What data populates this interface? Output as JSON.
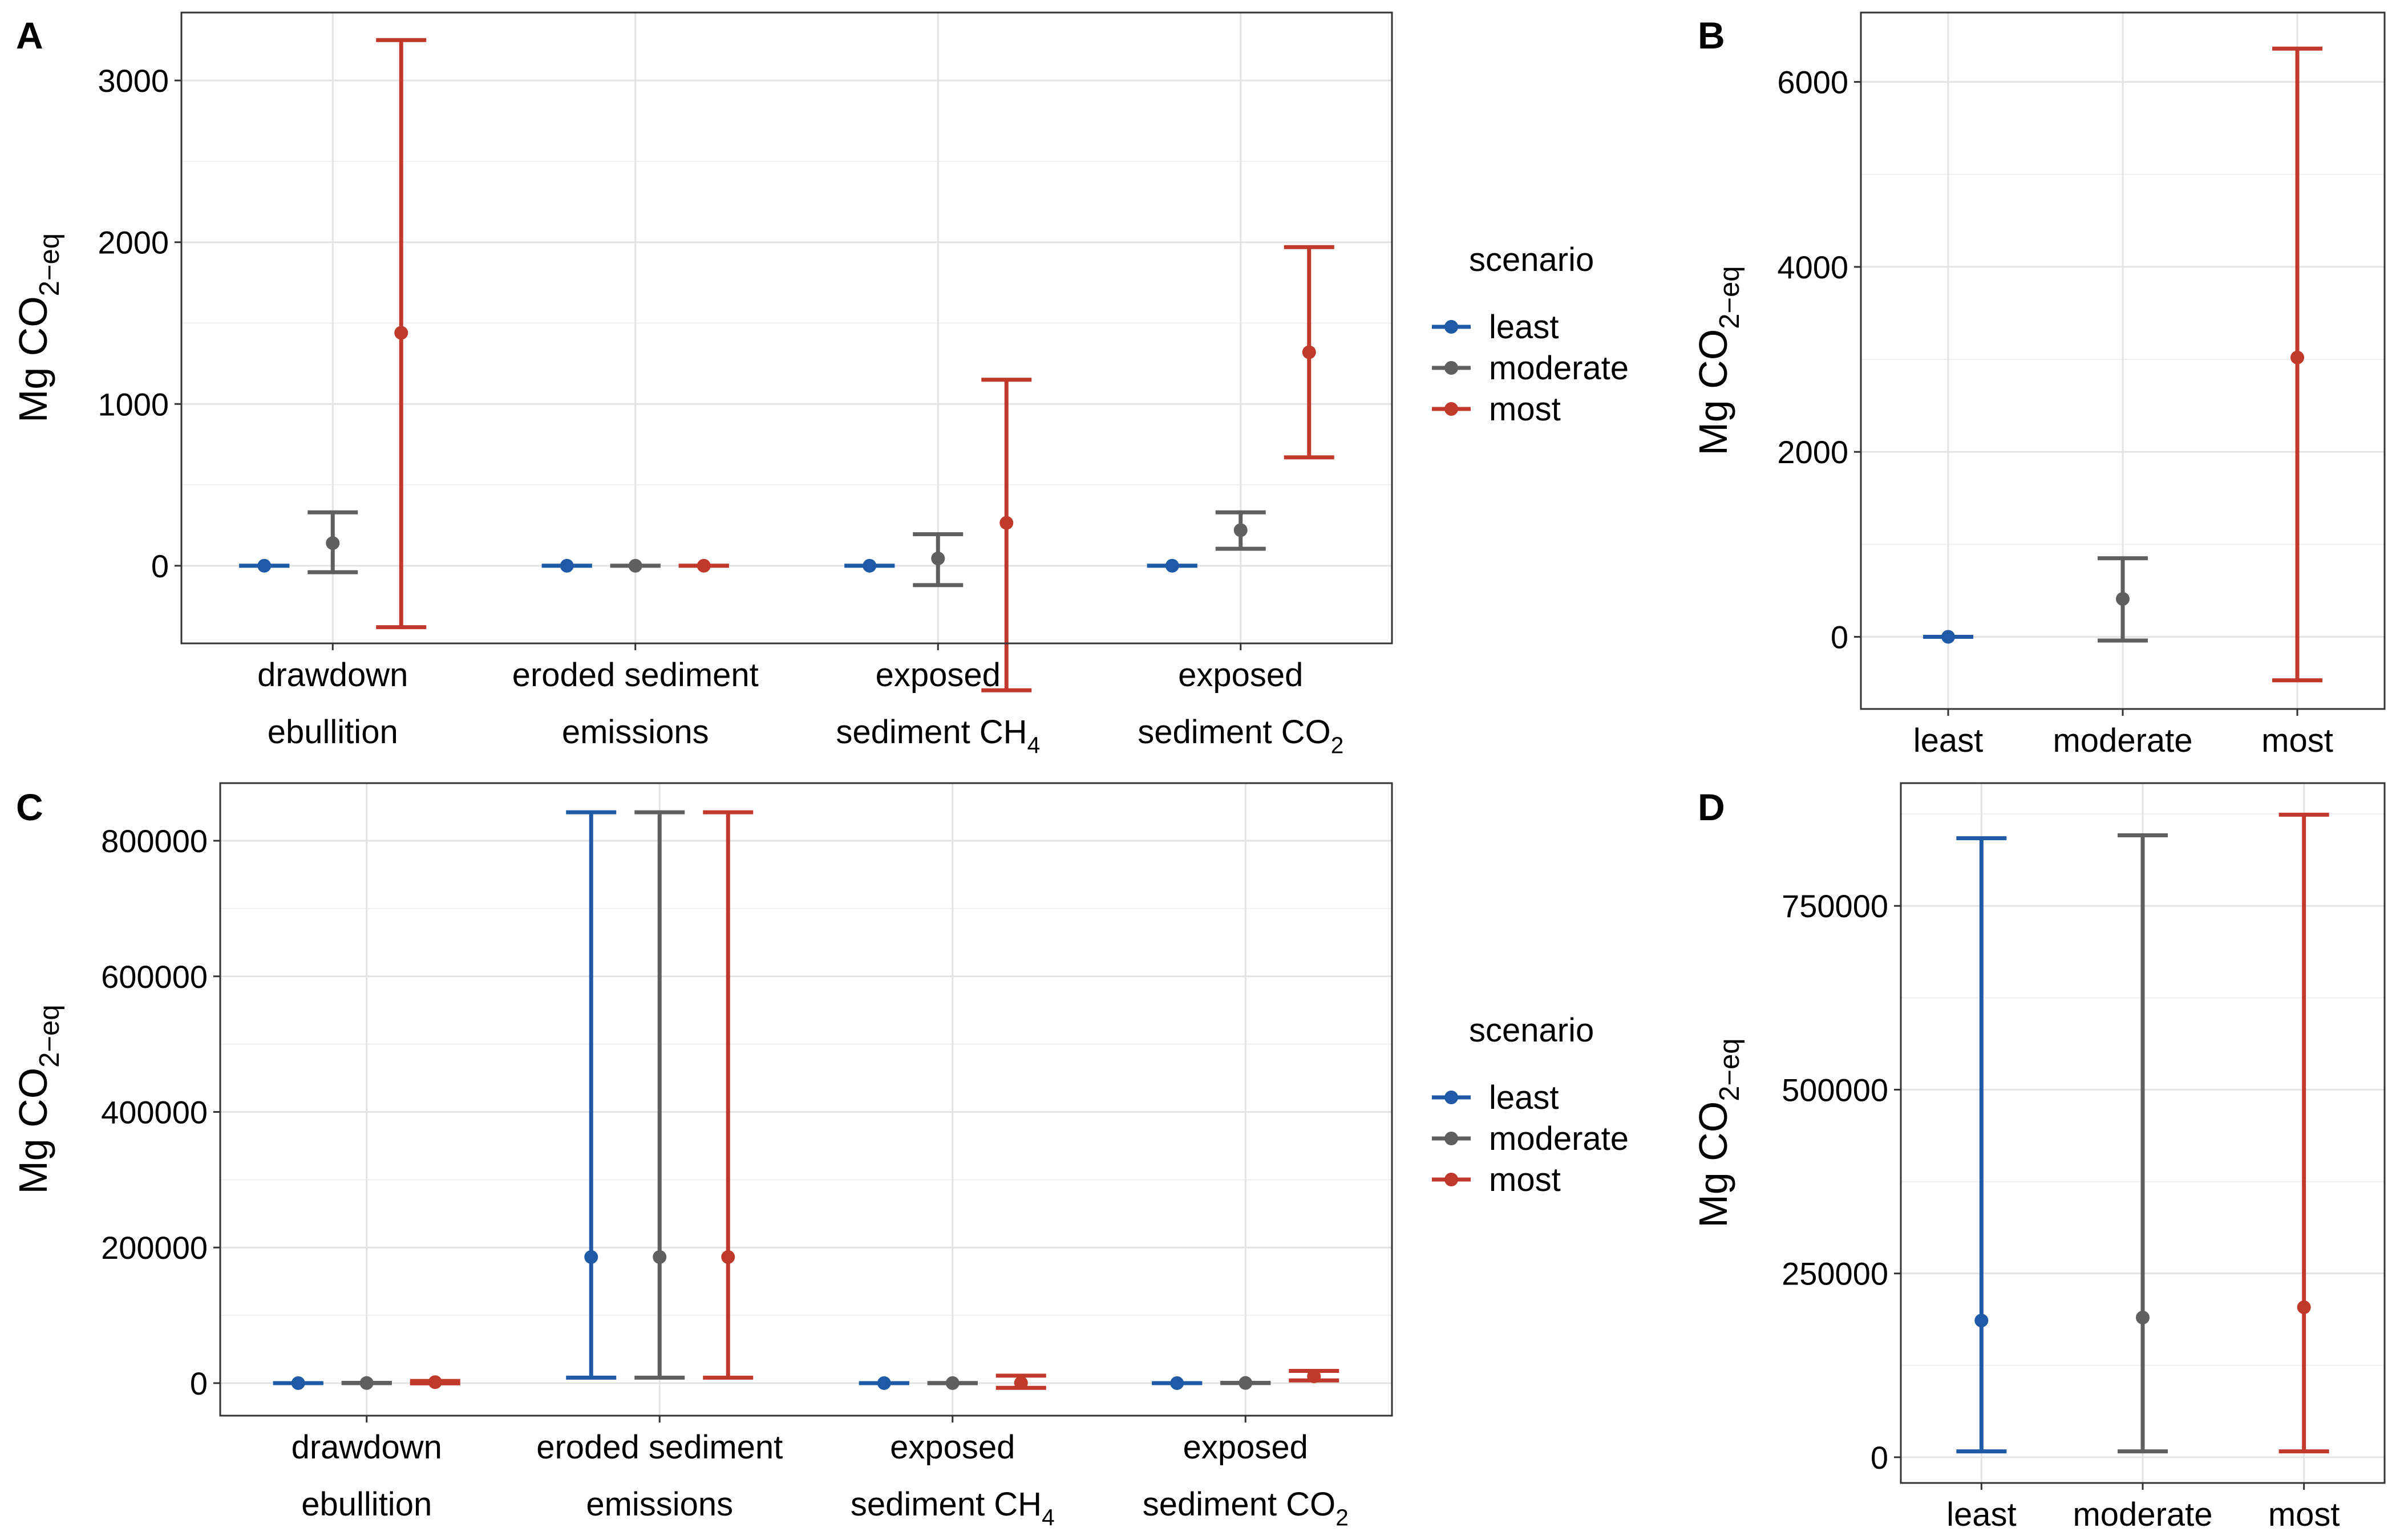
{
  "chart_data": [
    {
      "panel": "A",
      "type": "errorbar",
      "ylabel_main": "Mg CO",
      "ylabel_sub": "2−eq",
      "ylim": [
        -480,
        3420
      ],
      "ticks": [
        0,
        1000,
        2000,
        3000
      ],
      "tick_labels": [
        "0",
        "1000",
        "2000",
        "3000"
      ],
      "grid": true,
      "categories": [
        {
          "line1": "drawdown",
          "line2": "ebullition",
          "line2_sub": ""
        },
        {
          "line1": "eroded sediment",
          "line2": "emissions",
          "line2_sub": ""
        },
        {
          "line1": "exposed",
          "line2": "sediment CH",
          "line2_sub": "4"
        },
        {
          "line1": "exposed",
          "line2": "sediment CO",
          "line2_sub": "2"
        }
      ],
      "series": [
        {
          "name": "least",
          "color": "#1f5aa6",
          "mid": [
            0,
            0,
            0,
            0
          ],
          "low": [
            0,
            0,
            0,
            0
          ],
          "high": [
            0,
            0,
            0,
            0
          ]
        },
        {
          "name": "moderate",
          "color": "#5f5f5f",
          "mid": [
            140,
            0,
            45,
            220
          ],
          "low": [
            -40,
            0,
            -120,
            105
          ],
          "high": [
            330,
            0,
            195,
            330
          ]
        },
        {
          "name": "most",
          "color": "#c0392b",
          "mid": [
            1440,
            0,
            265,
            1320
          ],
          "low": [
            -380,
            0,
            -770,
            670
          ],
          "high": [
            3250,
            0,
            1150,
            1970
          ]
        }
      ]
    },
    {
      "panel": "B",
      "type": "errorbar",
      "ylabel_main": "Mg CO",
      "ylabel_sub": "2−eq",
      "ylim": [
        -780,
        6750
      ],
      "ticks": [
        0,
        2000,
        4000,
        6000
      ],
      "tick_labels": [
        "0",
        "2000",
        "4000",
        "6000"
      ],
      "grid": true,
      "categories": [
        {
          "line1": "least",
          "line2": "",
          "line2_sub": ""
        },
        {
          "line1": "moderate",
          "line2": "",
          "line2_sub": ""
        },
        {
          "line1": "most",
          "line2": "",
          "line2_sub": ""
        }
      ],
      "series": [
        {
          "name": "least",
          "color": "#1f5aa6",
          "mid": [
            0
          ],
          "low": [
            0
          ],
          "high": [
            0
          ]
        },
        {
          "name": "moderate",
          "color": "#5f5f5f",
          "mid": [
            410
          ],
          "low": [
            -40
          ],
          "high": [
            850
          ]
        },
        {
          "name": "most",
          "color": "#c0392b",
          "mid": [
            3020
          ],
          "low": [
            -470
          ],
          "high": [
            6360
          ]
        }
      ]
    },
    {
      "panel": "C",
      "type": "errorbar",
      "ylabel_main": "Mg CO",
      "ylabel_sub": "2−eq",
      "ylim": [
        -48000,
        885000
      ],
      "ticks": [
        0,
        200000,
        400000,
        600000,
        800000
      ],
      "tick_labels": [
        "0",
        "200000",
        "400000",
        "600000",
        "800000"
      ],
      "grid": true,
      "categories": [
        {
          "line1": "drawdown",
          "line2": "ebullition",
          "line2_sub": ""
        },
        {
          "line1": "eroded sediment",
          "line2": "emissions",
          "line2_sub": ""
        },
        {
          "line1": "exposed",
          "line2": "sediment CH",
          "line2_sub": "4"
        },
        {
          "line1": "exposed",
          "line2": "sediment CO",
          "line2_sub": "2"
        }
      ],
      "series": [
        {
          "name": "least",
          "color": "#1f5aa6",
          "mid": [
            0,
            186000,
            0,
            0
          ],
          "low": [
            0,
            8000,
            0,
            0
          ],
          "high": [
            0,
            842000,
            0,
            0
          ]
        },
        {
          "name": "moderate",
          "color": "#5f5f5f",
          "mid": [
            140,
            186000,
            45,
            220
          ],
          "low": [
            -40,
            8000,
            -120,
            105
          ],
          "high": [
            330,
            842000,
            195,
            330
          ]
        },
        {
          "name": "most",
          "color": "#c0392b",
          "mid": [
            1440,
            186000,
            265,
            10000
          ],
          "low": [
            -380,
            8000,
            -7000,
            4000
          ],
          "high": [
            3250,
            842000,
            11000,
            18000
          ]
        }
      ]
    },
    {
      "panel": "D",
      "type": "errorbar",
      "ylabel_main": "Mg CO",
      "ylabel_sub": "2−eq",
      "ylim": [
        -35000,
        917000
      ],
      "ticks": [
        0,
        250000,
        500000,
        750000
      ],
      "tick_labels": [
        "0",
        "250000",
        "500000",
        "750000"
      ],
      "grid": true,
      "categories": [
        {
          "line1": "least",
          "line2": "",
          "line2_sub": ""
        },
        {
          "line1": "moderate",
          "line2": "",
          "line2_sub": ""
        },
        {
          "line1": "most",
          "line2": "",
          "line2_sub": ""
        }
      ],
      "series": [
        {
          "name": "least",
          "color": "#1f5aa6",
          "mid": [
            186000
          ],
          "low": [
            8000
          ],
          "high": [
            842000
          ]
        },
        {
          "name": "moderate",
          "color": "#5f5f5f",
          "mid": [
            190000
          ],
          "low": [
            8000
          ],
          "high": [
            846000
          ]
        },
        {
          "name": "most",
          "color": "#c0392b",
          "mid": [
            204000
          ],
          "low": [
            8000
          ],
          "high": [
            874000
          ]
        }
      ]
    }
  ],
  "legend": {
    "title": "scenario",
    "items": [
      {
        "label": "least",
        "color": "#1f5aa6"
      },
      {
        "label": "moderate",
        "color": "#5f5f5f"
      },
      {
        "label": "most",
        "color": "#c0392b"
      }
    ]
  }
}
